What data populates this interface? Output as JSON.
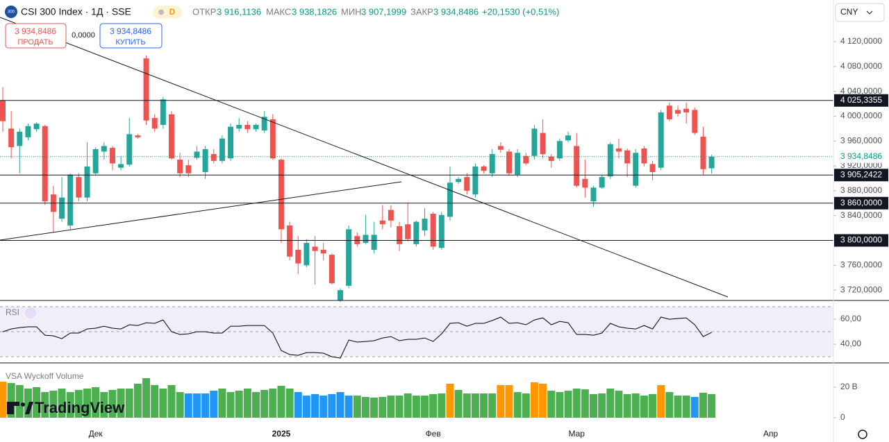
{
  "header": {
    "logo": "300",
    "symbol": "CSI 300 Index · 1Д · SSE",
    "interval_badge": "D",
    "open_label": "ОТКР",
    "open": "3 916,1136",
    "high_label": "МАКС",
    "high": "3 938,1826",
    "low_label": "МИН",
    "low": "3 907,1999",
    "close_label": "ЗАКР",
    "close": "3 934,8486",
    "change": "+20,1530 (+0,51%)",
    "sell_price": "3 934,8486",
    "sell": "ПРОДАТЬ",
    "spread": "0,0000",
    "buy_price": "3 934,8486",
    "buy": "КУПИТЬ",
    "currency": "CNY",
    "watermark": "TradingView"
  },
  "chart_data": [
    {
      "type": "candlestick",
      "up_color": "#26a69a",
      "down_color": "#ef5350",
      "categories": [
        null,
        null,
        null,
        null,
        null,
        null,
        null,
        null,
        null,
        null,
        null,
        "Дек",
        null,
        null,
        null,
        null,
        null,
        null,
        null,
        null,
        null,
        null,
        null,
        null,
        null,
        null,
        null,
        null,
        null,
        null,
        null,
        null,
        null,
        "2025",
        null,
        null,
        null,
        null,
        null,
        null,
        null,
        null,
        null,
        null,
        null,
        null,
        null,
        null,
        null,
        null,
        null,
        "Фев",
        null,
        null,
        null,
        null,
        null,
        null,
        null,
        null,
        null,
        null,
        null,
        null,
        null,
        null,
        null,
        null,
        "Мар",
        null,
        null,
        null,
        null,
        null,
        null,
        null,
        null,
        null,
        null,
        null,
        null,
        null,
        null,
        null,
        null,
        null,
        null,
        null,
        null,
        null,
        null,
        "Апр"
      ],
      "ohlc": [
        [
          4025,
          4047,
          3975,
          3992
        ],
        [
          3980,
          4008,
          3932,
          3950
        ],
        [
          3952,
          3980,
          3908,
          3975
        ],
        [
          3966,
          3988,
          3961,
          3984
        ],
        [
          3979,
          3990,
          3975,
          3988
        ],
        [
          3984,
          3986,
          3857,
          3863
        ],
        [
          3874,
          3888,
          3813,
          3846
        ],
        [
          3835,
          3902,
          3830,
          3869
        ],
        [
          3824,
          3908,
          3818,
          3906
        ],
        [
          3902,
          3908,
          3863,
          3869
        ],
        [
          3869,
          3958,
          3863,
          3919
        ],
        [
          3908,
          3950,
          3906,
          3947
        ],
        [
          3943,
          3958,
          3930,
          3952
        ],
        [
          3949,
          3952,
          3913,
          3924
        ],
        [
          3917,
          3936,
          3913,
          3923
        ],
        [
          3922,
          3997,
          3919,
          3971
        ],
        [
          3969,
          3971,
          3964,
          3966
        ],
        [
          4093,
          4098,
          3986,
          3993
        ],
        [
          3997,
          4003,
          3975,
          3980
        ],
        [
          3986,
          4031,
          3980,
          4027
        ],
        [
          4003,
          4008,
          3930,
          3932
        ],
        [
          3930,
          3941,
          3902,
          3908
        ],
        [
          3921,
          3930,
          3902,
          3908
        ],
        [
          3933,
          3952,
          3930,
          3943
        ],
        [
          3910,
          3952,
          3899,
          3947
        ],
        [
          3939,
          3947,
          3924,
          3928
        ],
        [
          3928,
          3969,
          3924,
          3964
        ],
        [
          3932,
          3988,
          3928,
          3983
        ],
        [
          3980,
          3997,
          3975,
          3986
        ],
        [
          3986,
          3992,
          3973,
          3979
        ],
        [
          3979,
          3988,
          3975,
          3986
        ],
        [
          3977,
          4008,
          3973,
          3999
        ],
        [
          3995,
          4003,
          3930,
          3932
        ],
        [
          3930,
          3932,
          3796,
          3818
        ],
        [
          3824,
          3830,
          3768,
          3774
        ],
        [
          3785,
          3807,
          3746,
          3763
        ],
        [
          3760,
          3802,
          3757,
          3796
        ],
        [
          3790,
          3807,
          3729,
          3783
        ],
        [
          3785,
          3796,
          3768,
          3779
        ],
        [
          3777,
          3779,
          3729,
          3731
        ],
        [
          3704,
          3723,
          3701,
          3720
        ],
        [
          3727,
          3824,
          3723,
          3818
        ],
        [
          3807,
          3813,
          3790,
          3794
        ],
        [
          3796,
          3841,
          3794,
          3809
        ],
        [
          3785,
          3830,
          3779,
          3809
        ],
        [
          3832,
          3857,
          3818,
          3826
        ],
        [
          3849,
          3857,
          3821,
          3832
        ],
        [
          3823,
          3830,
          3783,
          3794
        ],
        [
          3826,
          3861,
          3798,
          3802
        ],
        [
          3794,
          3832,
          3790,
          3830
        ],
        [
          3816,
          3852,
          3807,
          3835
        ],
        [
          3843,
          3846,
          3785,
          3790
        ],
        [
          3788,
          3846,
          3785,
          3841
        ],
        [
          3838,
          3919,
          3832,
          3893
        ],
        [
          3894,
          3902,
          3891,
          3899
        ],
        [
          3902,
          3908,
          3874,
          3880
        ],
        [
          3874,
          3924,
          3869,
          3919
        ],
        [
          3919,
          3921,
          3908,
          3912
        ],
        [
          3908,
          3947,
          3902,
          3939
        ],
        [
          3952,
          3958,
          3941,
          3946
        ],
        [
          3943,
          3947,
          3904,
          3908
        ],
        [
          3906,
          3947,
          3902,
          3941
        ],
        [
          3936,
          3941,
          3921,
          3924
        ],
        [
          3936,
          3986,
          3930,
          3980
        ],
        [
          3973,
          3995,
          3932,
          3939
        ],
        [
          3935,
          3939,
          3917,
          3928
        ],
        [
          3932,
          3964,
          3928,
          3960
        ],
        [
          3961,
          3975,
          3958,
          3969
        ],
        [
          3952,
          3973,
          3885,
          3888
        ],
        [
          3899,
          3930,
          3869,
          3885
        ],
        [
          3863,
          3888,
          3854,
          3885
        ],
        [
          3885,
          3906,
          3883,
          3902
        ],
        [
          3903,
          3958,
          3899,
          3955
        ],
        [
          3948,
          3964,
          3932,
          3943
        ],
        [
          3945,
          3948,
          3902,
          3924
        ],
        [
          3888,
          3947,
          3885,
          3941
        ],
        [
          3948,
          3952,
          3919,
          3924
        ],
        [
          3923,
          3928,
          3897,
          3910
        ],
        [
          3917,
          4010,
          3913,
          4006
        ],
        [
          4017,
          4022,
          3992,
          3995
        ],
        [
          4010,
          4017,
          3999,
          4004
        ],
        [
          4012,
          4022,
          3988,
          4006
        ],
        [
          4010,
          4014,
          3970,
          3973
        ],
        [
          3967,
          3983,
          3906,
          3914.7
        ],
        [
          3916.1136,
          3938.1826,
          3907.1999,
          3934.8486
        ],
        null,
        null,
        null,
        null,
        null
      ],
      "ylim": [
        3704.5,
        4187
      ],
      "yticks": [
        {
          "value": 4120,
          "label": "4 120,0000"
        },
        {
          "value": 4080,
          "label": "4 080,0000"
        },
        {
          "value": 4040,
          "label": "4 040,0000"
        },
        {
          "value": 4000,
          "label": "4 000,0000"
        },
        {
          "value": 3960,
          "label": "3 960,0000"
        },
        {
          "value": 3920,
          "label": "3 920,0000"
        },
        {
          "value": 3880,
          "label": "3 880,0000"
        },
        {
          "value": 3840,
          "label": "3 840,0000"
        },
        {
          "value": 3800,
          "label": "3 800,0000"
        },
        {
          "value": 3760,
          "label": "3 760,0000"
        },
        {
          "value": 3720,
          "label": "3 720,0000"
        }
      ],
      "levels": [
        {
          "value": 4025.3355,
          "label": "4 025,3355"
        },
        {
          "value": 3905.2422,
          "label": "3 905,2422"
        },
        {
          "value": 3860,
          "label": "3 860,0000"
        },
        {
          "value": 3800,
          "label": "3 800,0000"
        }
      ],
      "last_price": {
        "value": 3934.8486,
        "label": "3 934,8486"
      },
      "last_color": "#089981"
    },
    {
      "type": "line",
      "name": "RSI",
      "color": "#000000",
      "values": [
        50.0,
        52.2,
        53.3,
        53.9,
        53.9,
        47.2,
        46.7,
        44.4,
        48.9,
        48.9,
        52.2,
        52.8,
        54.4,
        52.8,
        52.2,
        55.6,
        55.0,
        57.2,
        56.7,
        59.4,
        50.0,
        47.8,
        48.3,
        50.0,
        50.0,
        48.9,
        48.9,
        54.4,
        54.4,
        55.0,
        55.0,
        55.0,
        48.9,
        35.0,
        31.7,
        31.1,
        33.3,
        33.3,
        32.8,
        30.0,
        28.9,
        43.3,
        41.7,
        42.2,
        42.8,
        45.0,
        46.1,
        42.8,
        43.9,
        43.9,
        45.0,
        42.2,
        48.3,
        56.7,
        57.2,
        54.4,
        56.7,
        56.7,
        58.9,
        61.7,
        56.7,
        57.2,
        55.6,
        59.4,
        61.1,
        55.6,
        58.3,
        57.2,
        47.8,
        47.8,
        47.2,
        48.9,
        56.7,
        53.9,
        52.8,
        52.2,
        55.0,
        52.2,
        61.7,
        60.0,
        60.6,
        61.1,
        55.6,
        46.1,
        49.4,
        null,
        null,
        null,
        null,
        null
      ],
      "ylim": [
        25.6,
        72.8
      ],
      "yticks": [
        {
          "value": 60,
          "label": "60,00"
        },
        {
          "value": 40,
          "label": "40,00"
        }
      ],
      "bands": [
        70,
        50,
        30
      ],
      "band_color": "#f1edf9"
    },
    {
      "type": "bar",
      "name": "VSA Wyckoff Volume",
      "values": [
        23.6,
        22.7,
        21.4,
        19.1,
        20.0,
        16.8,
        17.7,
        19.1,
        16.8,
        18.2,
        19.1,
        20.0,
        16.8,
        18.2,
        19.1,
        19.1,
        22.3,
        25.9,
        21.4,
        19.1,
        21.4,
        16.8,
        15.9,
        15.9,
        15.9,
        17.7,
        19.1,
        16.8,
        17.7,
        19.1,
        16.8,
        18.2,
        19.1,
        20.9,
        19.1,
        16.8,
        14.5,
        15.5,
        14.5,
        15.5,
        16.8,
        14.5,
        14.5,
        13.6,
        13.2,
        13.6,
        14.5,
        14.5,
        15.9,
        14.5,
        14.5,
        15.5,
        15.9,
        22.3,
        18.2,
        15.9,
        15.9,
        15.9,
        15.9,
        21.4,
        21.4,
        16.8,
        15.9,
        23.2,
        22.3,
        17.7,
        16.8,
        17.7,
        19.1,
        18.6,
        15.5,
        15.9,
        19.1,
        17.7,
        15.5,
        15.9,
        14.5,
        15.5,
        21.4,
        16.8,
        14.5,
        14.5,
        13.6,
        16.4,
        15.5,
        null,
        null,
        null,
        null,
        null
      ],
      "colors": [
        "#ff9800",
        "#4caf50",
        "#4caf50",
        "#4caf50",
        "#4caf50",
        "#4caf50",
        "#4caf50",
        "#4caf50",
        "#4caf50",
        "#4caf50",
        "#4caf50",
        "#4caf50",
        "#4caf50",
        "#4caf50",
        "#4caf50",
        "#4caf50",
        "#4caf50",
        "#4caf50",
        "#4caf50",
        "#4caf50",
        "#4caf50",
        "#4caf50",
        "#2196f3",
        "#2196f3",
        "#2196f3",
        "#2196f3",
        "#4caf50",
        "#4caf50",
        "#4caf50",
        "#4caf50",
        "#4caf50",
        "#4caf50",
        "#4caf50",
        "#4caf50",
        "#4caf50",
        "#2196f3",
        "#2196f3",
        "#2196f3",
        "#2196f3",
        "#2196f3",
        "#2196f3",
        "#2196f3",
        "#4caf50",
        "#4caf50",
        "#4caf50",
        "#4caf50",
        "#4caf50",
        "#4caf50",
        "#4caf50",
        "#4caf50",
        "#4caf50",
        "#4caf50",
        "#4caf50",
        "#ff9800",
        "#4caf50",
        "#4caf50",
        "#4caf50",
        "#4caf50",
        "#4caf50",
        "#ff9800",
        "#ff9800",
        "#4caf50",
        "#4caf50",
        "#ff9800",
        "#ff9800",
        "#4caf50",
        "#4caf50",
        "#4caf50",
        "#4caf50",
        "#4caf50",
        "#4caf50",
        "#4caf50",
        "#4caf50",
        "#4caf50",
        "#4caf50",
        "#4caf50",
        "#4caf50",
        "#4caf50",
        "#ff9800",
        "#4caf50",
        "#4caf50",
        "#4caf50",
        "#2196f3",
        "#4caf50",
        "#4caf50",
        null,
        null,
        null,
        null,
        null
      ],
      "ylim": [
        0,
        35
      ],
      "yticks": [
        {
          "value": 20,
          "label": "20 B"
        },
        0
      ]
    }
  ]
}
